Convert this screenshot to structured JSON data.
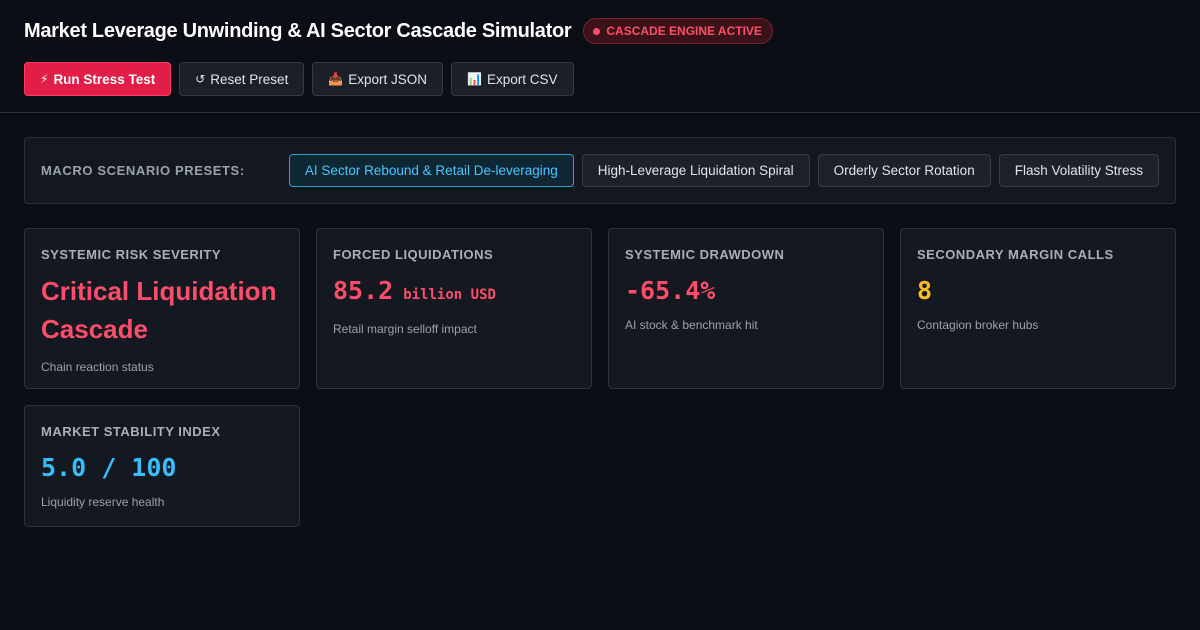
{
  "header": {
    "title": "Market Leverage Unwinding & AI Sector Cascade Simulator",
    "status_badge": "CASCADE ENGINE ACTIVE"
  },
  "toolbar": {
    "run": {
      "icon": "lightning-icon",
      "glyph": "⚡",
      "label": "Run Stress Test"
    },
    "reset": {
      "icon": "reset-icon",
      "glyph": "↺",
      "label": "Reset Preset"
    },
    "export_json": {
      "icon": "inbox-tray-icon",
      "glyph": "📥",
      "label": "Export JSON"
    },
    "export_csv": {
      "icon": "bar-chart-icon",
      "glyph": "📊",
      "label": "Export CSV"
    }
  },
  "presets": {
    "label": "MACRO SCENARIO PRESETS:",
    "items": [
      {
        "label": "AI Sector Rebound & Retail De-leveraging",
        "active": true
      },
      {
        "label": "High-Leverage Liquidation Spiral",
        "active": false
      },
      {
        "label": "Orderly Sector Rotation",
        "active": false
      },
      {
        "label": "Flash Volatility Stress",
        "active": false
      }
    ]
  },
  "cards": {
    "risk": {
      "title": "SYSTEMIC RISK SEVERITY",
      "value": "Critical Liquidation Cascade",
      "sub": "Chain reaction status"
    },
    "liquidations": {
      "title": "FORCED LIQUIDATIONS",
      "value": "85.2",
      "unit": "billion USD",
      "sub": "Retail margin selloff impact"
    },
    "drawdown": {
      "title": "SYSTEMIC DRAWDOWN",
      "value": "-65.4%",
      "sub": "AI stock & benchmark hit"
    },
    "margin_calls": {
      "title": "SECONDARY MARGIN CALLS",
      "value": "8",
      "sub": "Contagion broker hubs"
    },
    "stability": {
      "title": "MARKET STABILITY INDEX",
      "value": "5.0 / 100",
      "sub": "Liquidity reserve health"
    }
  },
  "colors": {
    "critical": "#ff4d6a",
    "warning": "#fbbf24",
    "info": "#38bdf8",
    "primary_button": "#e11d48",
    "background": "#0b0e14"
  }
}
